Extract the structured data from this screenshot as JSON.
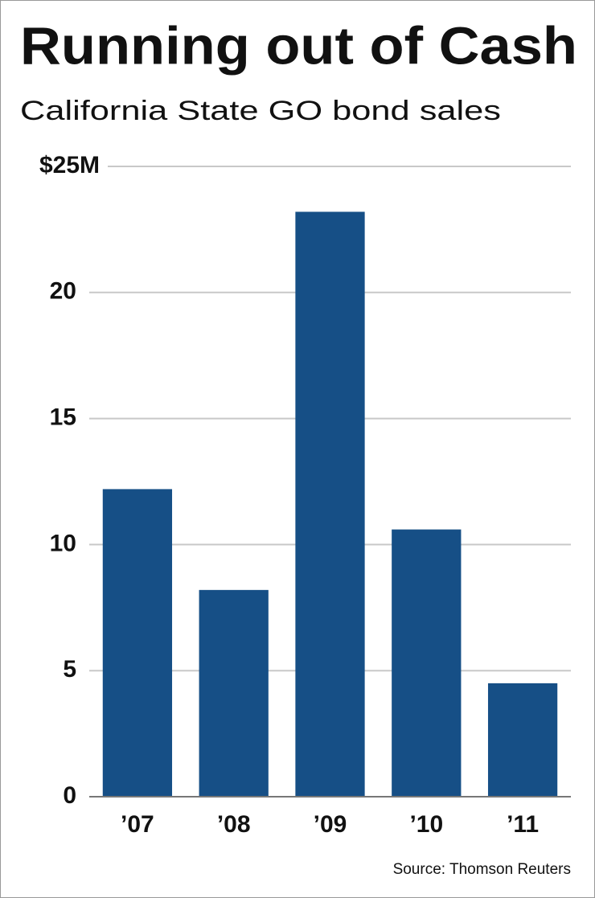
{
  "chart_data": {
    "type": "bar",
    "title": "Running out of Cash",
    "subtitle": "California State GO bond sales",
    "categories": [
      "’07",
      "’08",
      "’09",
      "’10",
      "’11"
    ],
    "values": [
      12.2,
      8.2,
      23.2,
      10.6,
      4.5
    ],
    "color": "#164f86",
    "ylim": [
      0,
      25
    ],
    "yticks": [
      0,
      5,
      10,
      15,
      20,
      {
        "value": 25,
        "label": "$25M"
      }
    ],
    "grid": true,
    "source": "Source: Thomson Reuters"
  }
}
